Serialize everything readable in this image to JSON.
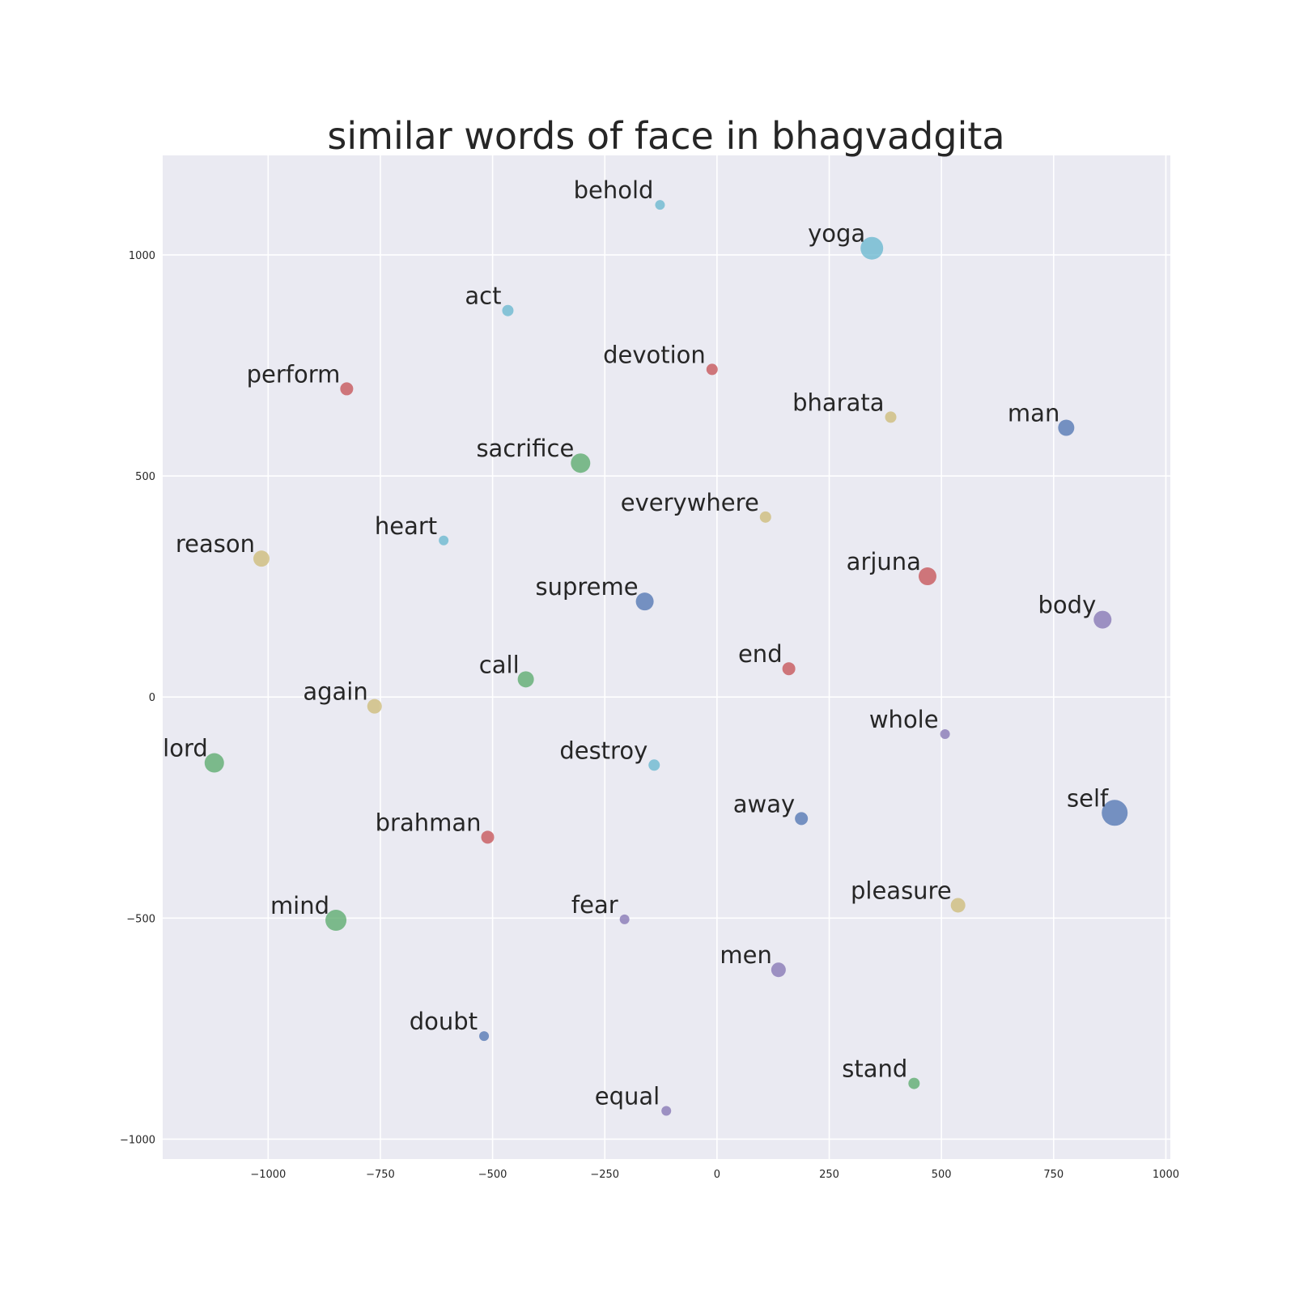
{
  "chart_data": {
    "type": "scatter",
    "title": "similar words of face in bhagvadgita",
    "xlabel": "",
    "ylabel": "",
    "xlim": [
      -1235,
      1010
    ],
    "ylim": [
      -1045,
      1225
    ],
    "grid": true,
    "xticks": [
      -1000,
      -750,
      -500,
      -250,
      0,
      250,
      500,
      750,
      1000
    ],
    "yticks": [
      -1000,
      -500,
      0,
      500,
      1000
    ],
    "xtick_labels": [
      "−1000",
      "−750",
      "−500",
      "−250",
      "0",
      "250",
      "500",
      "750",
      "1000"
    ],
    "ytick_labels": [
      "−1000",
      "−500",
      "0",
      "500",
      "1000"
    ],
    "colors": {
      "background": "#eaeaf2",
      "grid": "#ffffff",
      "blue": "#4c72b0",
      "green": "#55a868",
      "red": "#c44e52",
      "purple": "#8172b2",
      "yellow": "#ccb974",
      "cyan": "#64b5cd"
    },
    "points": [
      {
        "label": "behold",
        "x": -127,
        "y": 1113,
        "size": 6,
        "color": "cyan"
      },
      {
        "label": "yoga",
        "x": 345,
        "y": 1015,
        "size": 14,
        "color": "cyan"
      },
      {
        "label": "act",
        "x": -466,
        "y": 874,
        "size": 7,
        "color": "cyan"
      },
      {
        "label": "devotion",
        "x": -11,
        "y": 741,
        "size": 7,
        "color": "red"
      },
      {
        "label": "perform",
        "x": -825,
        "y": 697,
        "size": 8,
        "color": "red"
      },
      {
        "label": "bharata",
        "x": 387,
        "y": 633,
        "size": 7,
        "color": "yellow"
      },
      {
        "label": "man",
        "x": 778,
        "y": 609,
        "size": 10,
        "color": "blue"
      },
      {
        "label": "sacrifice",
        "x": -304,
        "y": 529,
        "size": 12,
        "color": "green"
      },
      {
        "label": "everywhere",
        "x": 108,
        "y": 407,
        "size": 7,
        "color": "yellow"
      },
      {
        "label": "heart",
        "x": -609,
        "y": 354,
        "size": 6,
        "color": "cyan"
      },
      {
        "label": "reason",
        "x": -1015,
        "y": 313,
        "size": 10,
        "color": "yellow"
      },
      {
        "label": "arjuna",
        "x": 469,
        "y": 273,
        "size": 11,
        "color": "red"
      },
      {
        "label": "supreme",
        "x": -161,
        "y": 216,
        "size": 11,
        "color": "blue"
      },
      {
        "label": "body",
        "x": 859,
        "y": 175,
        "size": 11,
        "color": "purple"
      },
      {
        "label": "end",
        "x": 160,
        "y": 64,
        "size": 8,
        "color": "red"
      },
      {
        "label": "call",
        "x": -426,
        "y": 40,
        "size": 10,
        "color": "green"
      },
      {
        "label": "again",
        "x": -763,
        "y": -21,
        "size": 9,
        "color": "yellow"
      },
      {
        "label": "whole",
        "x": 508,
        "y": -84,
        "size": 6,
        "color": "purple"
      },
      {
        "label": "lord",
        "x": -1120,
        "y": -149,
        "size": 12,
        "color": "green"
      },
      {
        "label": "destroy",
        "x": -140,
        "y": -154,
        "size": 7,
        "color": "cyan"
      },
      {
        "label": "self",
        "x": 886,
        "y": -262,
        "size": 16,
        "color": "blue"
      },
      {
        "label": "away",
        "x": 188,
        "y": -275,
        "size": 8,
        "color": "blue"
      },
      {
        "label": "brahman",
        "x": -511,
        "y": -317,
        "size": 8,
        "color": "red"
      },
      {
        "label": "pleasure",
        "x": 537,
        "y": -471,
        "size": 9,
        "color": "yellow"
      },
      {
        "label": "mind",
        "x": -849,
        "y": -505,
        "size": 13,
        "color": "green"
      },
      {
        "label": "fear",
        "x": -206,
        "y": -503,
        "size": 6,
        "color": "purple"
      },
      {
        "label": "men",
        "x": 137,
        "y": -617,
        "size": 9,
        "color": "purple"
      },
      {
        "label": "doubt",
        "x": -519,
        "y": -767,
        "size": 6,
        "color": "blue"
      },
      {
        "label": "stand",
        "x": 439,
        "y": -874,
        "size": 7,
        "color": "green"
      },
      {
        "label": "equal",
        "x": -113,
        "y": -936,
        "size": 6,
        "color": "purple"
      }
    ]
  }
}
